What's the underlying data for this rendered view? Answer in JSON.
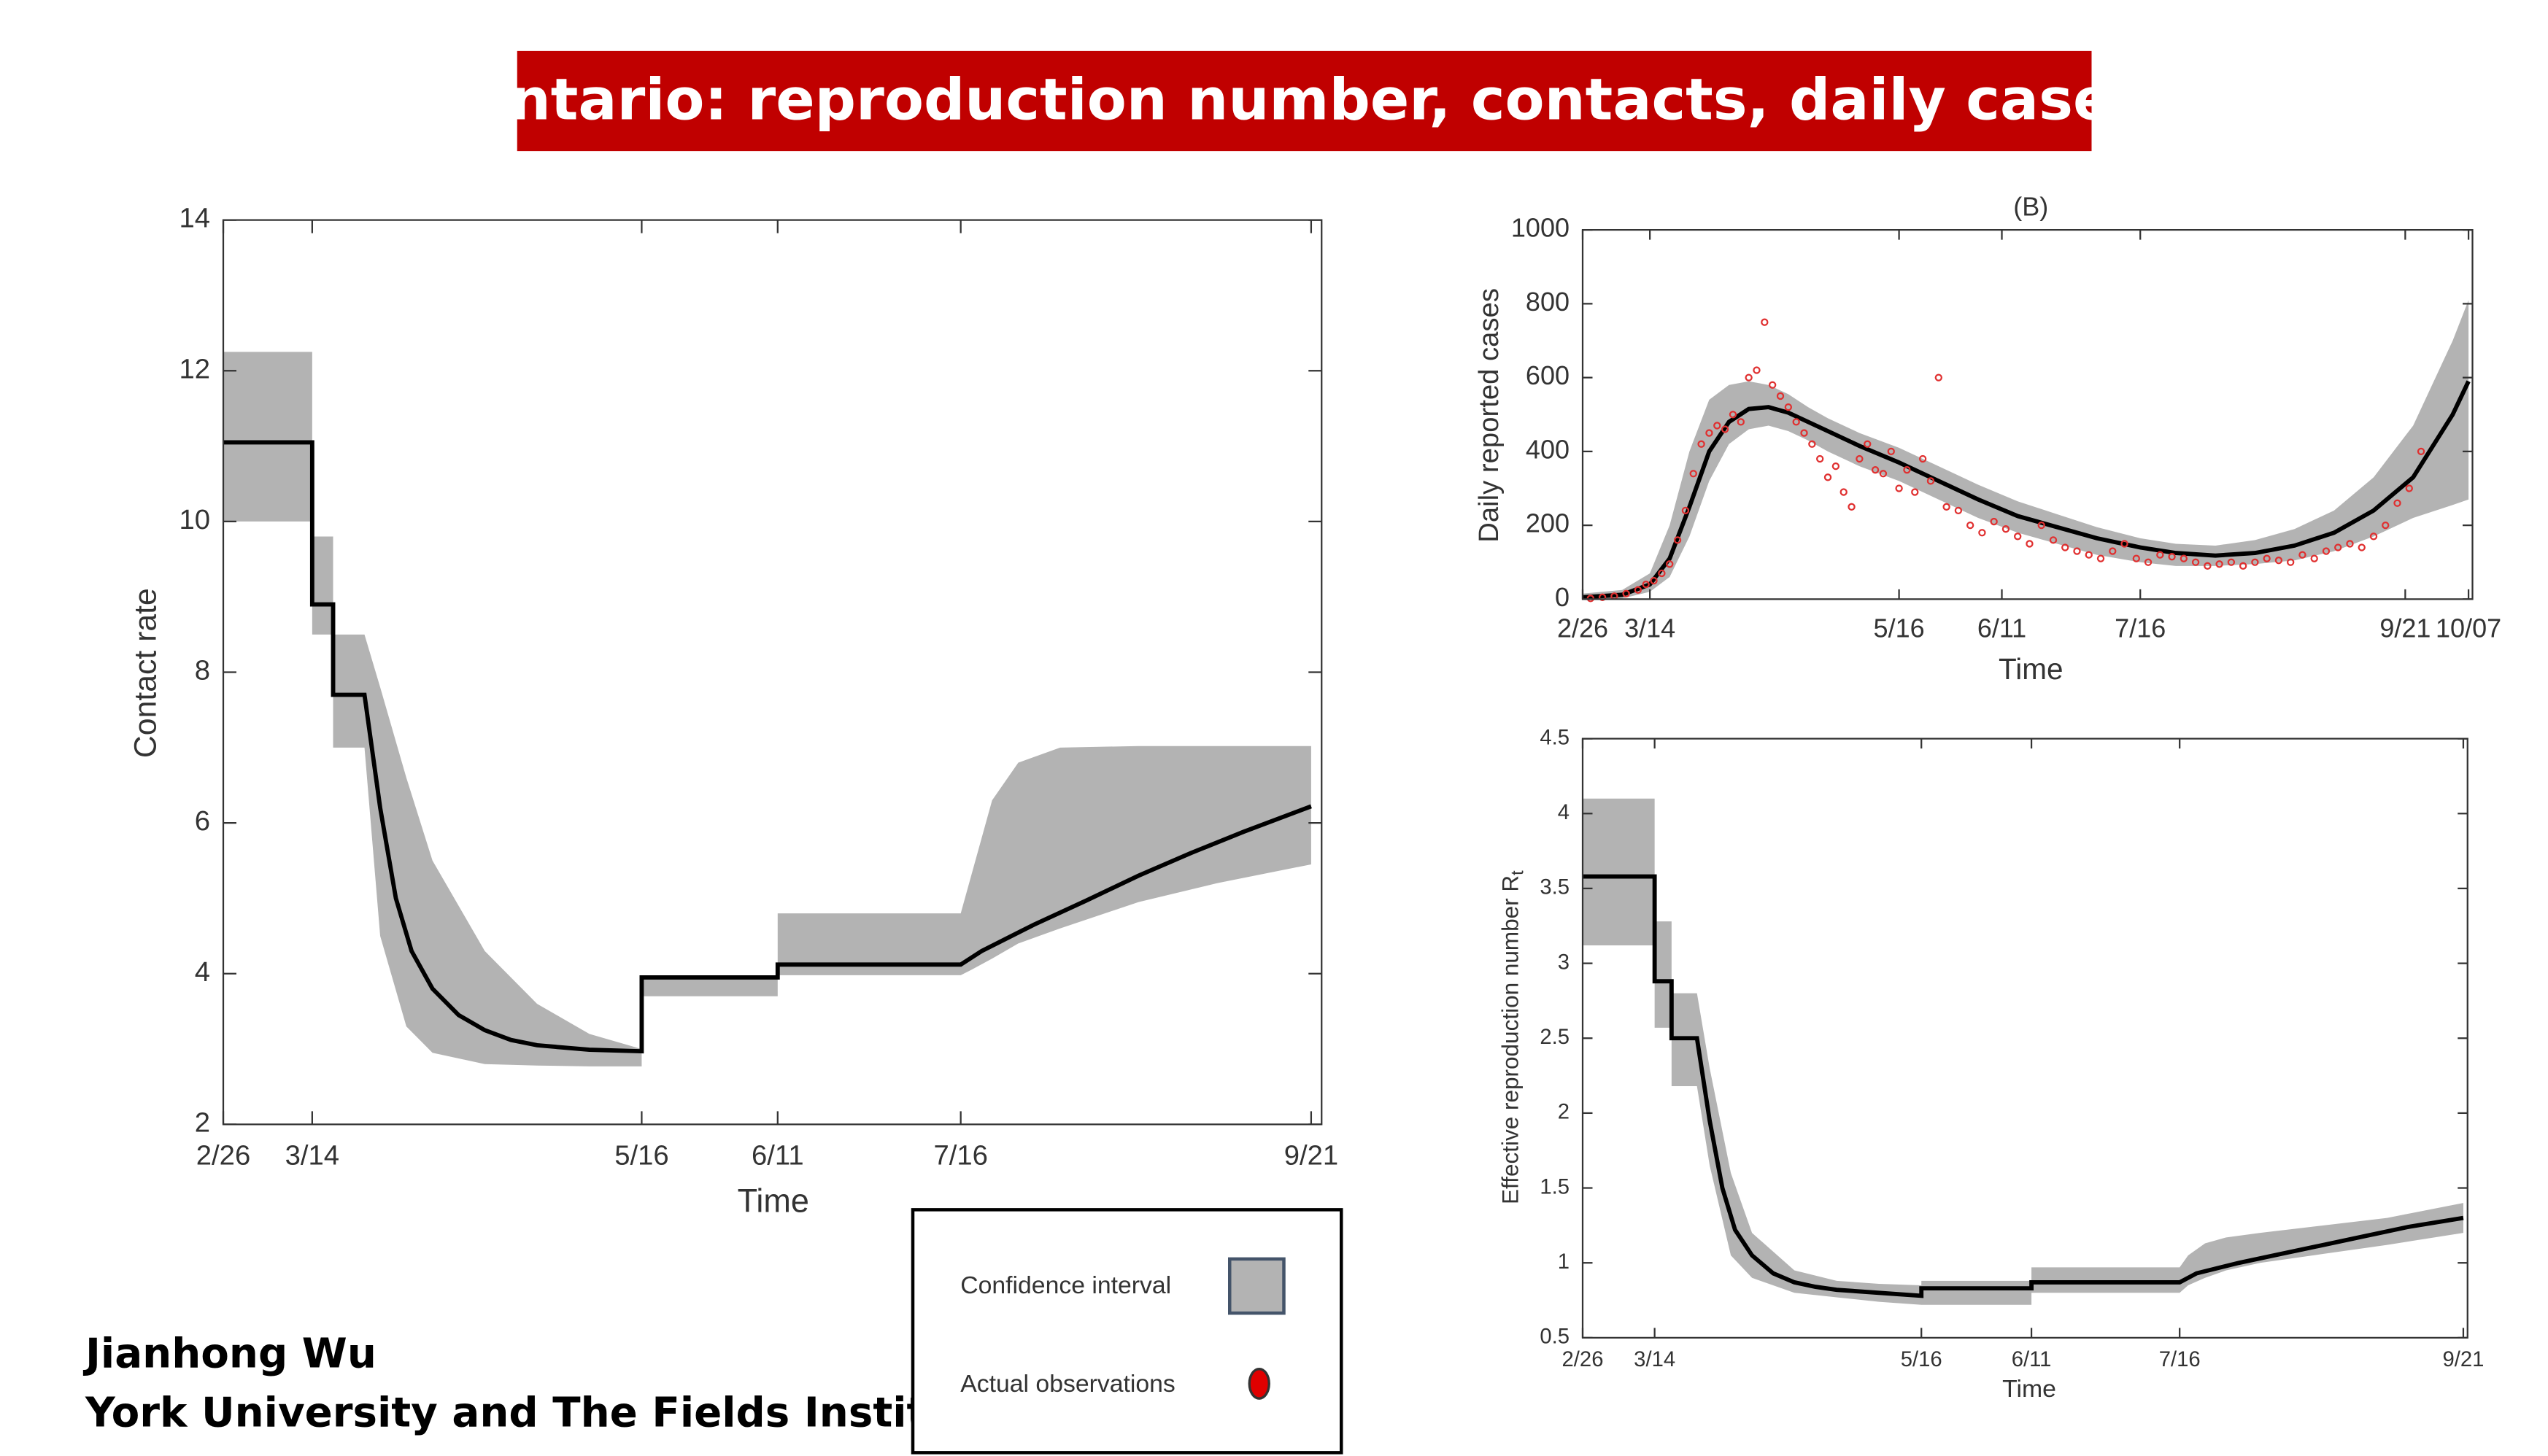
{
  "header": {
    "title": "Ontario: reproduction number, contacts, daily cases"
  },
  "author": {
    "name": "Jianhong Wu",
    "affiliation": "York University and The Fields Institute"
  },
  "legend": {
    "items": [
      {
        "label": "Confidence interval",
        "color": "#b3b3b3"
      },
      {
        "label": "Actual observations",
        "color": "#e00000"
      }
    ]
  },
  "chart_data": [
    {
      "type": "line",
      "xlabel": "Time",
      "ylabel": "Contact rate",
      "xlim": [
        0,
        210
      ],
      "ylim": [
        2,
        14
      ],
      "xticks": [
        {
          "value": 0,
          "label": "2/26"
        },
        {
          "value": 17,
          "label": "3/14"
        },
        {
          "value": 80,
          "label": "5/16"
        },
        {
          "value": 106,
          "label": "6/11"
        },
        {
          "value": 141,
          "label": "7/16"
        },
        {
          "value": 208,
          "label": "9/21"
        }
      ],
      "yticks": [
        2,
        4,
        6,
        8,
        10,
        12,
        14
      ],
      "band": {
        "color": "#b3b3b3",
        "x": [
          0,
          17,
          17,
          21,
          21,
          27,
          30,
          35,
          40,
          50,
          60,
          70,
          80,
          80,
          106,
          106,
          141,
          143,
          147,
          152,
          160,
          175,
          190,
          208
        ],
        "upper": [
          12.25,
          12.25,
          9.8,
          9.8,
          8.5,
          8.5,
          7.8,
          6.6,
          5.5,
          4.3,
          3.6,
          3.2,
          3.0,
          3.95,
          3.95,
          4.8,
          4.8,
          5.3,
          6.3,
          6.8,
          7.0,
          7.02,
          7.02,
          7.02
        ],
        "lower": [
          10,
          10,
          8.5,
          8.5,
          7.0,
          7.0,
          4.5,
          3.3,
          2.95,
          2.8,
          2.78,
          2.77,
          2.77,
          3.7,
          3.7,
          3.98,
          3.98,
          4.05,
          4.2,
          4.4,
          4.6,
          4.95,
          5.2,
          5.45
        ]
      },
      "series": [
        {
          "type": "line",
          "color": "#000000",
          "x": [
            0,
            17,
            17,
            21,
            21,
            27,
            30,
            33,
            36,
            40,
            45,
            50,
            55,
            60,
            70,
            80,
            80,
            106,
            106,
            141,
            145,
            155,
            165,
            175,
            185,
            195,
            208
          ],
          "values": [
            11.05,
            11.05,
            8.9,
            8.9,
            7.7,
            7.7,
            6.2,
            5.0,
            4.3,
            3.8,
            3.45,
            3.25,
            3.12,
            3.05,
            2.99,
            2.97,
            3.95,
            3.95,
            4.12,
            4.12,
            4.3,
            4.65,
            4.97,
            5.3,
            5.6,
            5.88,
            6.22
          ]
        }
      ]
    },
    {
      "type": "line",
      "title": "(B)",
      "xlabel": "Time",
      "ylabel": "Daily reported cases",
      "xlim": [
        0,
        225
      ],
      "ylim": [
        0,
        1000
      ],
      "xticks": [
        {
          "value": 0,
          "label": "2/26"
        },
        {
          "value": 17,
          "label": "3/14"
        },
        {
          "value": 80,
          "label": "5/16"
        },
        {
          "value": 106,
          "label": "6/11"
        },
        {
          "value": 141,
          "label": "7/16"
        },
        {
          "value": 208,
          "label": "9/21"
        },
        {
          "value": 224,
          "label": "10/07"
        }
      ],
      "yticks": [
        0,
        200,
        400,
        600,
        800,
        1000
      ],
      "band": {
        "color": "#b3b3b3",
        "x": [
          0,
          10,
          17,
          22,
          27,
          32,
          37,
          42,
          47,
          52,
          57,
          62,
          70,
          80,
          90,
          100,
          110,
          120,
          130,
          141,
          150,
          160,
          170,
          180,
          190,
          200,
          210,
          220,
          224
        ],
        "upper": [
          15,
          25,
          70,
          200,
          400,
          540,
          580,
          590,
          580,
          555,
          520,
          490,
          450,
          410,
          360,
          310,
          265,
          230,
          195,
          165,
          150,
          145,
          160,
          190,
          240,
          330,
          470,
          700,
          810
        ],
        "lower": [
          0,
          2,
          20,
          60,
          170,
          320,
          420,
          460,
          470,
          455,
          430,
          400,
          360,
          320,
          270,
          220,
          180,
          150,
          120,
          100,
          90,
          90,
          95,
          105,
          130,
          170,
          220,
          255,
          270
        ]
      },
      "series": [
        {
          "type": "line",
          "color": "#000000",
          "x": [
            0,
            10,
            17,
            22,
            27,
            32,
            37,
            42,
            47,
            52,
            57,
            62,
            70,
            80,
            90,
            100,
            110,
            120,
            130,
            141,
            150,
            160,
            170,
            180,
            190,
            200,
            210,
            220,
            224
          ],
          "values": [
            5,
            12,
            40,
            110,
            250,
            400,
            480,
            515,
            520,
            505,
            480,
            455,
            415,
            370,
            320,
            270,
            225,
            195,
            165,
            140,
            125,
            118,
            125,
            145,
            180,
            240,
            330,
            500,
            590
          ]
        },
        {
          "type": "scatter",
          "color": "#e03030",
          "x": [
            2,
            5,
            8,
            11,
            14,
            16,
            18,
            20,
            22,
            24,
            26,
            28,
            30,
            32,
            34,
            36,
            38,
            40,
            42,
            44,
            46,
            48,
            50,
            52,
            54,
            56,
            58,
            60,
            62,
            64,
            66,
            68,
            70,
            72,
            74,
            76,
            78,
            80,
            82,
            84,
            86,
            88,
            90,
            92,
            95,
            98,
            101,
            104,
            107,
            110,
            113,
            116,
            119,
            122,
            125,
            128,
            131,
            134,
            137,
            140,
            143,
            146,
            149,
            152,
            155,
            158,
            161,
            164,
            167,
            170,
            173,
            176,
            179,
            182,
            185,
            188,
            191,
            194,
            197,
            200,
            203,
            206,
            209,
            212
          ],
          "values": [
            2,
            5,
            8,
            15,
            25,
            40,
            50,
            70,
            95,
            160,
            240,
            340,
            420,
            450,
            470,
            460,
            500,
            480,
            600,
            620,
            750,
            580,
            550,
            520,
            480,
            450,
            420,
            380,
            330,
            360,
            290,
            250,
            380,
            420,
            350,
            340,
            400,
            300,
            350,
            290,
            380,
            320,
            600,
            250,
            240,
            200,
            180,
            210,
            190,
            170,
            150,
            200,
            160,
            140,
            130,
            120,
            110,
            130,
            150,
            110,
            100,
            120,
            115,
            110,
            100,
            90,
            95,
            100,
            90,
            100,
            110,
            105,
            100,
            120,
            110,
            130,
            140,
            150,
            140,
            170,
            200,
            260,
            300,
            400
          ]
        }
      ]
    },
    {
      "type": "line",
      "xlabel": "Time",
      "ylabel": "Effective reproduction number R",
      "ylabel_sub": "t",
      "xlim": [
        0,
        209
      ],
      "ylim": [
        0.5,
        4.5
      ],
      "xticks": [
        {
          "value": 0,
          "label": "2/26"
        },
        {
          "value": 17,
          "label": "3/14"
        },
        {
          "value": 80,
          "label": "5/16"
        },
        {
          "value": 106,
          "label": "6/11"
        },
        {
          "value": 141,
          "label": "7/16"
        },
        {
          "value": 208,
          "label": "9/21"
        }
      ],
      "yticks": [
        0.5,
        1,
        1.5,
        2,
        2.5,
        3,
        3.5,
        4,
        4.5
      ],
      "band": {
        "color": "#b3b3b3",
        "x": [
          0,
          17,
          17,
          21,
          21,
          27,
          30,
          35,
          40,
          50,
          60,
          70,
          80,
          80,
          106,
          106,
          141,
          143,
          147,
          152,
          160,
          175,
          190,
          208
        ],
        "upper": [
          4.1,
          4.1,
          3.28,
          3.28,
          2.8,
          2.8,
          2.3,
          1.6,
          1.2,
          0.95,
          0.88,
          0.86,
          0.85,
          0.88,
          0.88,
          0.97,
          0.97,
          1.05,
          1.13,
          1.17,
          1.2,
          1.25,
          1.3,
          1.4
        ],
        "lower": [
          3.12,
          3.12,
          2.57,
          2.57,
          2.18,
          2.18,
          1.65,
          1.05,
          0.9,
          0.8,
          0.77,
          0.74,
          0.72,
          0.72,
          0.72,
          0.8,
          0.8,
          0.85,
          0.9,
          0.95,
          1.0,
          1.06,
          1.12,
          1.2
        ]
      },
      "series": [
        {
          "type": "line",
          "color": "#000000",
          "x": [
            0,
            17,
            17,
            21,
            21,
            27,
            30,
            33,
            36,
            40,
            45,
            50,
            55,
            60,
            70,
            80,
            80,
            106,
            106,
            141,
            145,
            155,
            165,
            175,
            185,
            195,
            208
          ],
          "values": [
            3.58,
            3.58,
            2.88,
            2.88,
            2.5,
            2.5,
            1.95,
            1.5,
            1.22,
            1.05,
            0.93,
            0.87,
            0.84,
            0.82,
            0.8,
            0.78,
            0.83,
            0.83,
            0.87,
            0.87,
            0.93,
            1.0,
            1.06,
            1.12,
            1.18,
            1.24,
            1.3
          ]
        }
      ]
    }
  ]
}
